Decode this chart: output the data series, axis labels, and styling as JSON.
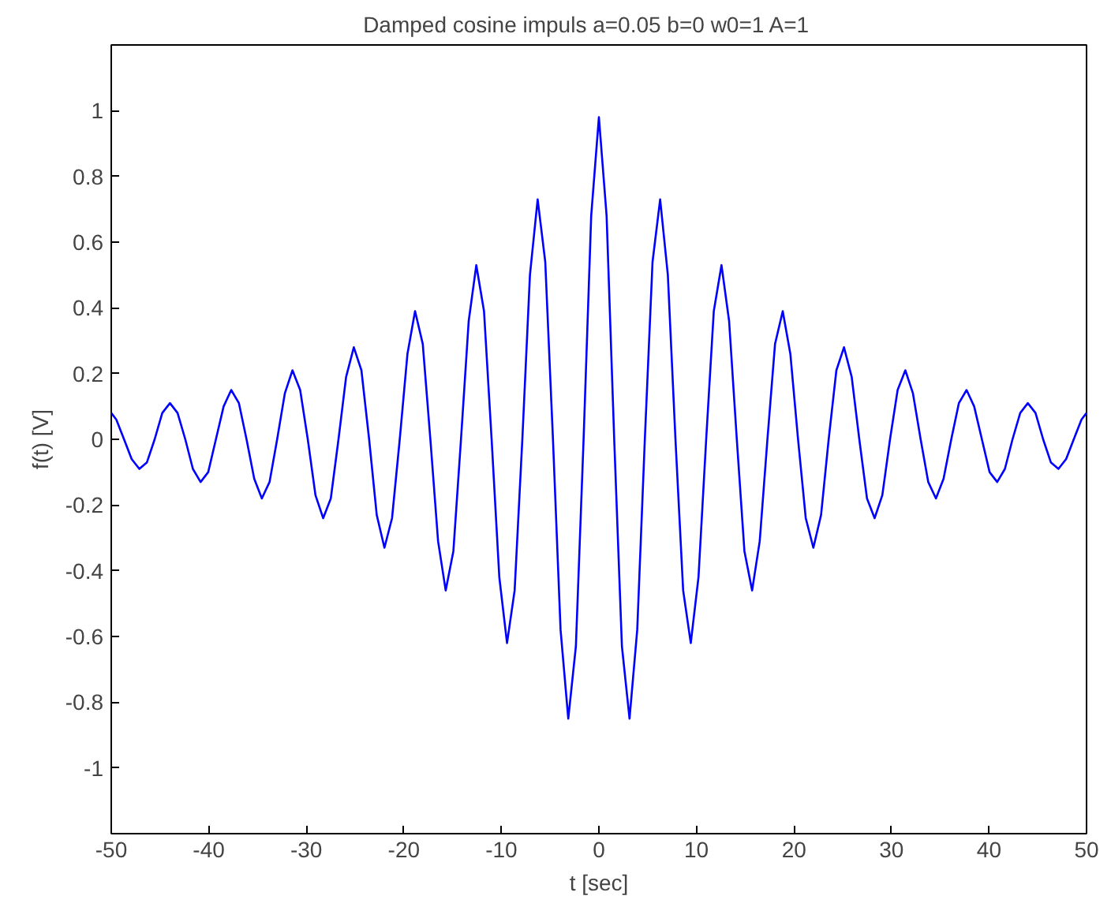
{
  "chart_data": {
    "type": "line",
    "title": "Damped cosine impuls  a=0.05  b=0  w0=1  A=1",
    "xlabel": "t [sec]",
    "ylabel": "f(t) [V]",
    "xlim": [
      -50,
      50
    ],
    "ylim": [
      -1.2,
      1.2
    ],
    "xticks": [
      -50,
      -40,
      -30,
      -20,
      -10,
      0,
      10,
      20,
      30,
      40,
      50
    ],
    "yticks": [
      -1,
      -0.8,
      -0.6,
      -0.4,
      -0.2,
      0,
      0.2,
      0.4,
      0.6,
      0.8,
      1
    ],
    "grid": false,
    "marker": "none",
    "line_style": "solid",
    "series": [
      {
        "color": "#0000ff",
        "x": [
          -50,
          -49.48,
          -48.69,
          -47.91,
          -47.12,
          -46.34,
          -45.55,
          -44.77,
          -43.98,
          -43.2,
          -42.41,
          -41.63,
          -40.84,
          -40.06,
          -39.27,
          -38.48,
          -37.7,
          -36.91,
          -36.13,
          -35.34,
          -34.56,
          -33.77,
          -32.99,
          -32.2,
          -31.42,
          -30.63,
          -29.85,
          -29.06,
          -28.27,
          -27.49,
          -26.7,
          -25.92,
          -25.13,
          -24.35,
          -23.56,
          -22.78,
          -21.99,
          -21.21,
          -20.42,
          -19.63,
          -18.85,
          -18.06,
          -17.28,
          -16.49,
          -15.71,
          -14.92,
          -14.14,
          -13.35,
          -12.57,
          -11.78,
          -11.0,
          -10.21,
          -9.42,
          -8.64,
          -7.85,
          -7.07,
          -6.28,
          -5.5,
          -4.71,
          -3.93,
          -3.14,
          -2.36,
          -1.57,
          -0.79,
          0,
          0.79,
          1.57,
          2.36,
          3.14,
          3.93,
          4.71,
          5.5,
          6.28,
          7.07,
          7.85,
          8.64,
          9.42,
          10.21,
          11.0,
          11.78,
          12.57,
          13.35,
          14.14,
          14.92,
          15.71,
          16.49,
          17.28,
          18.06,
          18.85,
          19.63,
          20.42,
          21.21,
          21.99,
          22.78,
          23.56,
          24.35,
          25.13,
          25.92,
          26.7,
          27.49,
          28.27,
          29.06,
          29.85,
          30.63,
          31.42,
          32.2,
          32.99,
          33.77,
          34.56,
          35.34,
          36.13,
          36.91,
          37.7,
          38.48,
          39.27,
          40.06,
          40.84,
          41.63,
          42.41,
          43.2,
          43.98,
          44.77,
          45.55,
          46.34,
          47.12,
          47.91,
          48.69,
          49.48,
          50
        ],
        "values": [
          0.08,
          0.06,
          0,
          -0.06,
          -0.09,
          -0.07,
          0,
          0.08,
          0.11,
          0.08,
          0,
          -0.09,
          -0.13,
          -0.1,
          0,
          0.1,
          0.15,
          0.11,
          0,
          -0.12,
          -0.18,
          -0.13,
          0,
          0.14,
          0.21,
          0.15,
          0,
          -0.17,
          -0.24,
          -0.18,
          0,
          0.19,
          0.28,
          0.21,
          0,
          -0.23,
          -0.33,
          -0.24,
          0,
          0.26,
          0.39,
          0.29,
          0,
          -0.31,
          -0.46,
          -0.34,
          0,
          0.36,
          0.53,
          0.39,
          0,
          -0.42,
          -0.62,
          -0.46,
          0,
          0.5,
          0.73,
          0.54,
          0,
          -0.58,
          -0.85,
          -0.63,
          0,
          0.68,
          0.98,
          0.68,
          0,
          -0.63,
          -0.85,
          -0.58,
          0,
          0.54,
          0.73,
          0.5,
          0,
          -0.46,
          -0.62,
          -0.42,
          0,
          0.39,
          0.53,
          0.36,
          0,
          -0.34,
          -0.46,
          -0.31,
          0,
          0.29,
          0.39,
          0.26,
          0,
          -0.24,
          -0.33,
          -0.23,
          0,
          0.21,
          0.28,
          0.19,
          0,
          -0.18,
          -0.24,
          -0.17,
          0,
          0.15,
          0.21,
          0.14,
          0,
          -0.13,
          -0.18,
          -0.12,
          0,
          0.11,
          0.15,
          0.1,
          0,
          -0.1,
          -0.13,
          -0.09,
          0,
          0.08,
          0.11,
          0.08,
          0,
          -0.07,
          -0.09,
          -0.06,
          0,
          0.06,
          0.08
        ]
      }
    ]
  }
}
